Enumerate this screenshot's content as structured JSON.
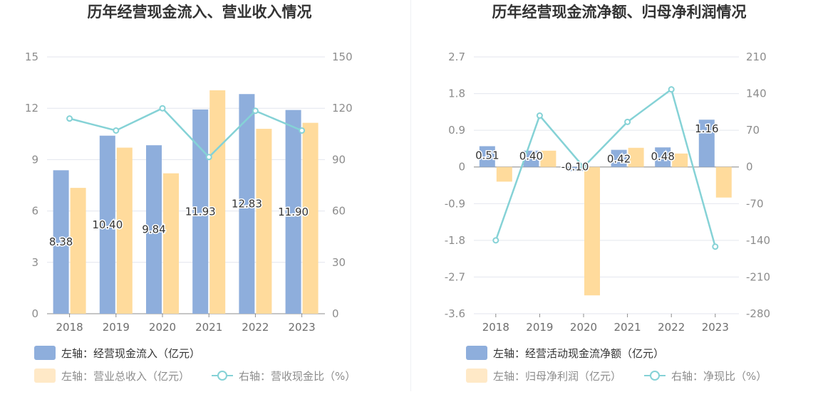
{
  "chart_data": [
    {
      "type": "bar",
      "title": "历年经营现金流入、营业收入情况",
      "categories": [
        "2018",
        "2019",
        "2020",
        "2021",
        "2022",
        "2023"
      ],
      "y_left": {
        "ticks": [
          "0",
          "3",
          "6",
          "9",
          "12",
          "15"
        ],
        "ylim": [
          0,
          15
        ]
      },
      "y_right": {
        "ticks": [
          "0",
          "30",
          "60",
          "90",
          "120",
          "150"
        ],
        "ylim": [
          0,
          150
        ]
      },
      "grid": true,
      "legend_position": "bottom-left",
      "series": [
        {
          "name": "左轴：经营现金流入（亿元）",
          "kind": "bar",
          "axis": "left",
          "color": "#8eaedc",
          "values": [
            8.38,
            10.4,
            9.84,
            11.93,
            12.83,
            11.9
          ],
          "labels": [
            "8.38",
            "10.40",
            "9.84",
            "11.93",
            "12.83",
            "11.90"
          ]
        },
        {
          "name": "左轴：营业总收入（亿元）",
          "kind": "bar",
          "axis": "left",
          "color": "#ffdb9c",
          "values": [
            7.35,
            9.7,
            8.2,
            13.05,
            10.8,
            11.15
          ]
        },
        {
          "name": "右轴：营收现金比（%）",
          "kind": "line",
          "axis": "right",
          "color": "#85d2d6",
          "values": [
            114,
            107,
            120,
            91.5,
            118.5,
            107
          ]
        }
      ]
    },
    {
      "type": "bar",
      "title": "历年经营现金流净额、归母净利润情况",
      "categories": [
        "2018",
        "2019",
        "2020",
        "2021",
        "2022",
        "2023"
      ],
      "y_left": {
        "ticks": [
          "-3.6",
          "-2.7",
          "-1.8",
          "-0.9",
          "0",
          "0.9",
          "1.8",
          "2.7"
        ],
        "ylim": [
          -3.6,
          2.7
        ]
      },
      "y_right": {
        "ticks": [
          "-280",
          "-210",
          "-140",
          "-70",
          "0",
          "70",
          "140",
          "210"
        ],
        "ylim": [
          -280,
          210
        ]
      },
      "grid": true,
      "legend_position": "bottom-left",
      "series": [
        {
          "name": "左轴：经营活动现金流净额（亿元）",
          "kind": "bar",
          "axis": "left",
          "color": "#8eaedc",
          "values": [
            0.51,
            0.4,
            -0.1,
            0.42,
            0.48,
            1.16
          ],
          "labels": [
            "0.51",
            "0.40",
            "-0.10",
            "0.42",
            "0.48",
            "1.16"
          ]
        },
        {
          "name": "左轴：归母净利润（亿元）",
          "kind": "bar",
          "axis": "left",
          "color": "#ffdb9c",
          "values": [
            -0.36,
            0.4,
            -3.15,
            0.47,
            0.33,
            -0.75
          ]
        },
        {
          "name": "右轴：净现比（%）",
          "kind": "line",
          "axis": "right",
          "color": "#85d2d6",
          "values": [
            -140,
            98,
            0,
            86,
            148,
            -152
          ]
        }
      ]
    }
  ]
}
